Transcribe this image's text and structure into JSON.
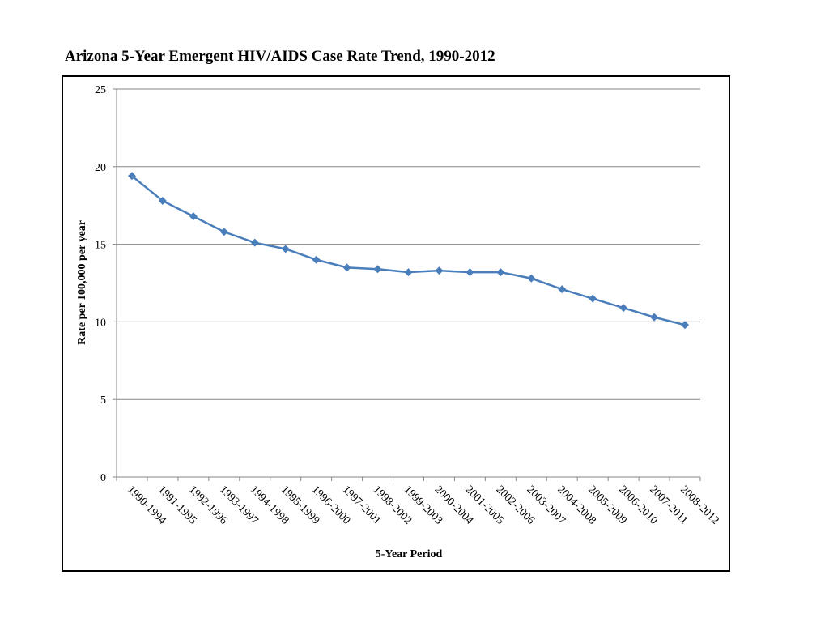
{
  "title": "Arizona 5-Year Emergent HIV/AIDS Case Rate Trend, 1990-2012",
  "chart_data": {
    "type": "line",
    "title": "Arizona 5-Year Emergent HIV/AIDS Case Rate Trend, 1990-2012",
    "xlabel": "5-Year Period",
    "ylabel": "Rate per 100,000 per year",
    "ylim": [
      0,
      25
    ],
    "yticks": [
      0,
      5,
      10,
      15,
      20,
      25
    ],
    "grid": true,
    "legend": "none",
    "categories": [
      "1990-1994",
      "1991-1995",
      "1992-1996",
      "1993-1997",
      "1994-1998",
      "1995-1999",
      "1996-2000",
      "1997-2001",
      "1998-2002",
      "1999-2003",
      "2000-2004",
      "2001-2005",
      "2002-2006",
      "2003-2007",
      "2004-2008",
      "2005-2009",
      "2006-2010",
      "2007-2011",
      "2008-2012"
    ],
    "series": [
      {
        "values": [
          19.4,
          17.8,
          16.8,
          15.8,
          15.1,
          14.7,
          14.0,
          13.5,
          13.4,
          13.2,
          13.3,
          13.2,
          13.2,
          12.8,
          12.1,
          11.5,
          10.9,
          10.3,
          9.8
        ],
        "color": "#4a7ebb"
      }
    ],
    "grid_color": "#868686"
  }
}
